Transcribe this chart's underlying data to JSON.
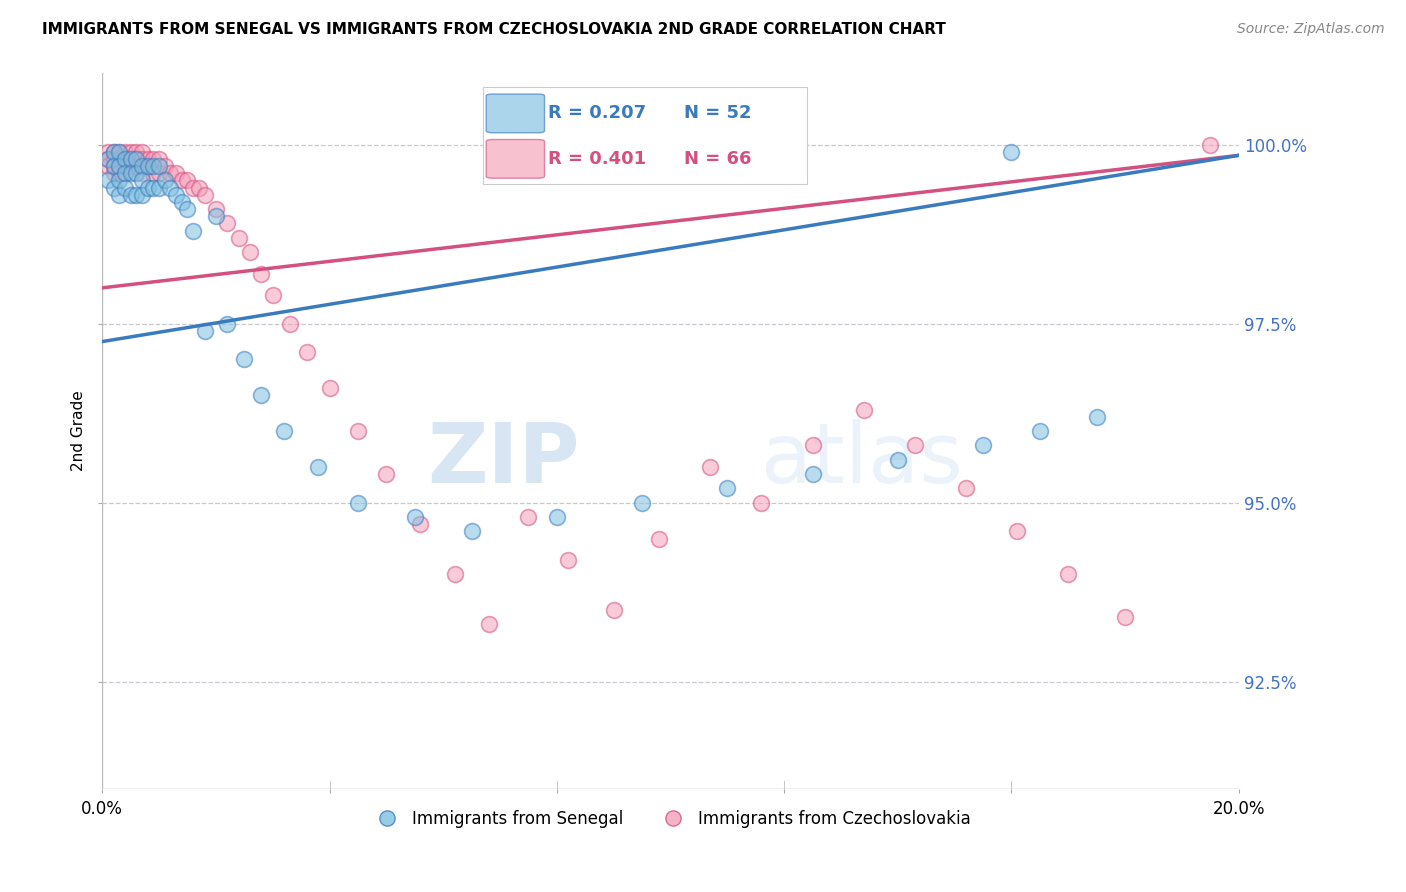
{
  "title": "IMMIGRANTS FROM SENEGAL VS IMMIGRANTS FROM CZECHOSLOVAKIA 2ND GRADE CORRELATION CHART",
  "source": "Source: ZipAtlas.com",
  "ylabel": "2nd Grade",
  "ytick_labels": [
    "100.0%",
    "97.5%",
    "95.0%",
    "92.5%"
  ],
  "ytick_values": [
    1.0,
    0.975,
    0.95,
    0.925
  ],
  "xlim": [
    0.0,
    0.2
  ],
  "ylim": [
    0.91,
    1.01
  ],
  "legend_blue_r": "0.207",
  "legend_blue_n": "52",
  "legend_pink_r": "0.401",
  "legend_pink_n": "66",
  "blue_color": "#7fbfdf",
  "pink_color": "#f5a0b8",
  "blue_line_color": "#3a7bbf",
  "pink_line_color": "#d45080",
  "watermark_zip": "ZIP",
  "watermark_atlas": "atlas",
  "senegal_x": [
    0.001,
    0.001,
    0.002,
    0.002,
    0.002,
    0.003,
    0.003,
    0.003,
    0.003,
    0.004,
    0.004,
    0.004,
    0.005,
    0.005,
    0.005,
    0.006,
    0.006,
    0.006,
    0.007,
    0.007,
    0.007,
    0.008,
    0.008,
    0.009,
    0.009,
    0.01,
    0.01,
    0.011,
    0.012,
    0.013,
    0.014,
    0.015,
    0.016,
    0.018,
    0.02,
    0.022,
    0.025,
    0.028,
    0.032,
    0.038,
    0.045,
    0.055,
    0.065,
    0.08,
    0.095,
    0.11,
    0.125,
    0.14,
    0.155,
    0.165,
    0.175,
    0.16
  ],
  "senegal_y": [
    0.998,
    0.995,
    0.999,
    0.997,
    0.994,
    0.999,
    0.997,
    0.995,
    0.993,
    0.998,
    0.996,
    0.994,
    0.998,
    0.996,
    0.993,
    0.998,
    0.996,
    0.993,
    0.997,
    0.995,
    0.993,
    0.997,
    0.994,
    0.997,
    0.994,
    0.997,
    0.994,
    0.995,
    0.994,
    0.993,
    0.992,
    0.991,
    0.988,
    0.974,
    0.99,
    0.975,
    0.97,
    0.965,
    0.96,
    0.955,
    0.95,
    0.948,
    0.946,
    0.948,
    0.95,
    0.952,
    0.954,
    0.956,
    0.958,
    0.96,
    0.962,
    0.999
  ],
  "czech_x": [
    0.001,
    0.001,
    0.001,
    0.002,
    0.002,
    0.002,
    0.002,
    0.003,
    0.003,
    0.003,
    0.003,
    0.004,
    0.004,
    0.004,
    0.004,
    0.005,
    0.005,
    0.005,
    0.006,
    0.006,
    0.006,
    0.007,
    0.007,
    0.007,
    0.008,
    0.008,
    0.009,
    0.009,
    0.01,
    0.01,
    0.011,
    0.012,
    0.013,
    0.014,
    0.015,
    0.016,
    0.017,
    0.018,
    0.02,
    0.022,
    0.024,
    0.026,
    0.028,
    0.03,
    0.033,
    0.036,
    0.04,
    0.045,
    0.05,
    0.056,
    0.062,
    0.068,
    0.075,
    0.082,
    0.09,
    0.098,
    0.107,
    0.116,
    0.125,
    0.134,
    0.143,
    0.152,
    0.161,
    0.17,
    0.18,
    0.195
  ],
  "czech_y": [
    0.999,
    0.998,
    0.997,
    0.999,
    0.998,
    0.997,
    0.996,
    0.999,
    0.998,
    0.997,
    0.996,
    0.999,
    0.998,
    0.997,
    0.996,
    0.999,
    0.998,
    0.997,
    0.999,
    0.998,
    0.997,
    0.999,
    0.998,
    0.996,
    0.998,
    0.997,
    0.998,
    0.996,
    0.998,
    0.996,
    0.997,
    0.996,
    0.996,
    0.995,
    0.995,
    0.994,
    0.994,
    0.993,
    0.991,
    0.989,
    0.987,
    0.985,
    0.982,
    0.979,
    0.975,
    0.971,
    0.966,
    0.96,
    0.954,
    0.947,
    0.94,
    0.933,
    0.948,
    0.942,
    0.935,
    0.945,
    0.955,
    0.95,
    0.958,
    0.963,
    0.958,
    0.952,
    0.946,
    0.94,
    0.934,
    1.0
  ]
}
